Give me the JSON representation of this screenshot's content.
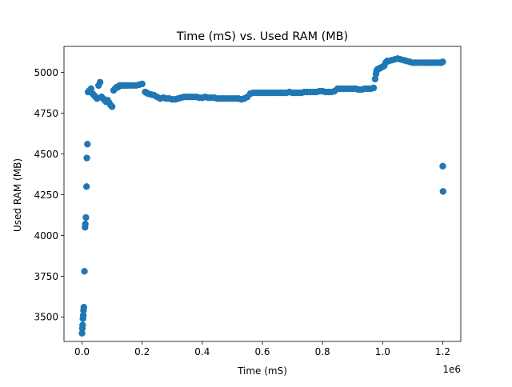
{
  "chart_data": {
    "type": "scatter",
    "title": "Time (mS) vs. Used RAM (MB)",
    "xlabel": "Time (mS)",
    "ylabel": "Used RAM (MB)",
    "x_offset_text": "1e6",
    "xlim": [
      -0.06,
      1.26
    ],
    "ylim": [
      3350,
      5160
    ],
    "xticks": [
      {
        "value": 0.0,
        "label": "0.0"
      },
      {
        "value": 0.2,
        "label": "0.2"
      },
      {
        "value": 0.4,
        "label": "0.4"
      },
      {
        "value": 0.6,
        "label": "0.6"
      },
      {
        "value": 0.8,
        "label": "0.8"
      },
      {
        "value": 1.0,
        "label": "1.0"
      },
      {
        "value": 1.2,
        "label": "1.2"
      }
    ],
    "yticks": [
      {
        "value": 3500,
        "label": "3500"
      },
      {
        "value": 3750,
        "label": "3750"
      },
      {
        "value": 4000,
        "label": "4000"
      },
      {
        "value": 4250,
        "label": "4250"
      },
      {
        "value": 4500,
        "label": "4500"
      },
      {
        "value": 4750,
        "label": "4750"
      },
      {
        "value": 5000,
        "label": "5000"
      }
    ],
    "grid": false,
    "marker_color": "#1f77b4",
    "series": [
      {
        "name": "",
        "x": [
          0.0,
          0.001,
          0.002,
          0.003,
          0.004,
          0.005,
          0.006,
          0.008,
          0.01,
          0.011,
          0.013,
          0.015,
          0.016,
          0.018,
          0.02,
          0.025,
          0.03,
          0.035,
          0.04,
          0.045,
          0.05,
          0.055,
          0.06,
          0.065,
          0.07,
          0.075,
          0.08,
          0.085,
          0.09,
          0.095,
          0.1,
          0.105,
          0.11,
          0.115,
          0.12,
          0.125,
          0.13,
          0.135,
          0.14,
          0.145,
          0.15,
          0.16,
          0.17,
          0.18,
          0.19,
          0.2,
          0.21,
          0.215,
          0.22,
          0.23,
          0.24,
          0.25,
          0.26,
          0.27,
          0.28,
          0.29,
          0.3,
          0.31,
          0.32,
          0.33,
          0.34,
          0.35,
          0.36,
          0.37,
          0.38,
          0.39,
          0.4,
          0.41,
          0.42,
          0.43,
          0.44,
          0.45,
          0.46,
          0.47,
          0.48,
          0.49,
          0.5,
          0.51,
          0.52,
          0.53,
          0.54,
          0.55,
          0.56,
          0.57,
          0.58,
          0.59,
          0.6,
          0.61,
          0.62,
          0.63,
          0.64,
          0.65,
          0.66,
          0.67,
          0.68,
          0.69,
          0.7,
          0.71,
          0.72,
          0.73,
          0.74,
          0.75,
          0.76,
          0.77,
          0.78,
          0.79,
          0.8,
          0.81,
          0.82,
          0.83,
          0.84,
          0.85,
          0.86,
          0.87,
          0.88,
          0.89,
          0.9,
          0.91,
          0.92,
          0.93,
          0.94,
          0.95,
          0.96,
          0.97,
          0.975,
          0.978,
          0.98,
          0.983,
          0.985,
          0.99,
          0.995,
          1.0,
          1.005,
          1.01,
          1.015,
          1.02,
          1.03,
          1.04,
          1.05,
          1.06,
          1.07,
          1.08,
          1.09,
          1.1,
          1.11,
          1.12,
          1.13,
          1.14,
          1.15,
          1.16,
          1.17,
          1.18,
          1.19,
          1.195,
          1.2,
          1.2,
          1.201
        ],
        "y": [
          3400,
          3430,
          3450,
          3490,
          3510,
          3540,
          3560,
          3780,
          4050,
          4070,
          4110,
          4300,
          4475,
          4560,
          4880,
          4890,
          4900,
          4870,
          4860,
          4850,
          4840,
          4920,
          4940,
          4850,
          4840,
          4830,
          4820,
          4830,
          4815,
          4800,
          4790,
          4890,
          4900,
          4910,
          4910,
          4920,
          4920,
          4920,
          4920,
          4920,
          4920,
          4920,
          4920,
          4920,
          4925,
          4930,
          4880,
          4875,
          4870,
          4865,
          4860,
          4850,
          4840,
          4845,
          4840,
          4840,
          4835,
          4835,
          4840,
          4845,
          4850,
          4850,
          4850,
          4850,
          4850,
          4845,
          4845,
          4850,
          4845,
          4845,
          4845,
          4840,
          4840,
          4840,
          4840,
          4840,
          4840,
          4840,
          4840,
          4835,
          4840,
          4850,
          4870,
          4875,
          4875,
          4875,
          4875,
          4875,
          4875,
          4875,
          4875,
          4875,
          4875,
          4875,
          4875,
          4880,
          4875,
          4875,
          4875,
          4875,
          4880,
          4880,
          4880,
          4880,
          4880,
          4885,
          4885,
          4880,
          4880,
          4880,
          4885,
          4900,
          4900,
          4900,
          4900,
          4900,
          4900,
          4900,
          4895,
          4895,
          4900,
          4900,
          4900,
          4905,
          4960,
          4990,
          5010,
          5020,
          5020,
          5025,
          5030,
          5035,
          5040,
          5060,
          5070,
          5070,
          5075,
          5080,
          5085,
          5080,
          5075,
          5070,
          5065,
          5060,
          5060,
          5060,
          5060,
          5060,
          5060,
          5060,
          5060,
          5060,
          5060,
          5060,
          5065,
          4425,
          4270
        ]
      }
    ]
  }
}
